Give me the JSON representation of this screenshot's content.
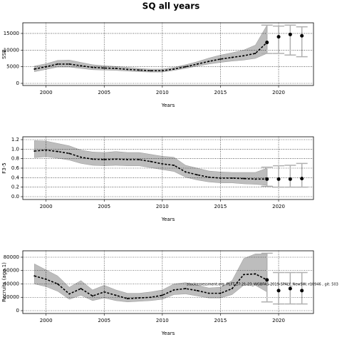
{
  "chart_data": [
    {
      "type": "line",
      "title": "SQ all years",
      "xlabel": "Years",
      "ylabel": "SSB",
      "x": [
        1999,
        2000,
        2001,
        2002,
        2003,
        2004,
        2005,
        2006,
        2007,
        2008,
        2009,
        2010,
        2011,
        2012,
        2013,
        2014,
        2015,
        2016,
        2017,
        2018,
        2019
      ],
      "values": [
        4300,
        5000,
        5800,
        5800,
        5300,
        4800,
        4600,
        4500,
        4200,
        4000,
        3800,
        3800,
        4300,
        5000,
        5800,
        6600,
        7300,
        7800,
        8300,
        9000,
        12300
      ],
      "lower": [
        3500,
        4200,
        4900,
        4900,
        4500,
        4100,
        4000,
        3900,
        3700,
        3500,
        3400,
        3400,
        3900,
        4500,
        5200,
        5800,
        6300,
        6700,
        7000,
        7500,
        9000
      ],
      "upper": [
        5200,
        5900,
        6900,
        7000,
        6300,
        5600,
        5300,
        5100,
        4800,
        4500,
        4300,
        4300,
        4800,
        5600,
        6500,
        7600,
        8500,
        9200,
        10000,
        11500,
        17500
      ],
      "proj_x": [
        2019,
        2020,
        2021,
        2022
      ],
      "proj_values": [
        12300,
        14000,
        14700,
        14300
      ],
      "proj_lower": [
        9000,
        9000,
        8500,
        8000
      ],
      "proj_upper": [
        17500,
        17200,
        17500,
        17000
      ],
      "color": "#000000",
      "band_color": "#bdbdbd",
      "bar_color": "#b0b0b0",
      "xlim": [
        1998,
        2023
      ],
      "ylim": [
        -640,
        18200
      ],
      "xticks": [
        2000,
        2005,
        2010,
        2015,
        2020
      ],
      "yticks": [
        0,
        5000,
        10000,
        15000
      ],
      "grid": true
    },
    {
      "type": "line",
      "xlabel": "Years",
      "ylabel": "F3-5",
      "x": [
        1999,
        2000,
        2001,
        2002,
        2003,
        2004,
        2005,
        2006,
        2007,
        2008,
        2009,
        2010,
        2011,
        2012,
        2013,
        2014,
        2015,
        2016,
        2017,
        2018,
        2019
      ],
      "values": [
        0.96,
        0.98,
        0.95,
        0.91,
        0.83,
        0.79,
        0.78,
        0.79,
        0.78,
        0.78,
        0.74,
        0.69,
        0.66,
        0.52,
        0.46,
        0.41,
        0.39,
        0.39,
        0.38,
        0.37,
        0.37
      ],
      "lower": [
        0.82,
        0.84,
        0.81,
        0.77,
        0.7,
        0.66,
        0.65,
        0.66,
        0.65,
        0.65,
        0.61,
        0.57,
        0.53,
        0.41,
        0.35,
        0.31,
        0.29,
        0.29,
        0.27,
        0.26,
        0.24
      ],
      "upper": [
        1.18,
        1.17,
        1.12,
        1.07,
        0.98,
        0.94,
        0.93,
        0.95,
        0.93,
        0.93,
        0.89,
        0.85,
        0.83,
        0.66,
        0.6,
        0.54,
        0.52,
        0.51,
        0.51,
        0.51,
        0.6
      ],
      "proj_x": [
        2019,
        2020,
        2021,
        2022
      ],
      "proj_values": [
        0.37,
        0.37,
        0.37,
        0.38
      ],
      "proj_lower": [
        0.22,
        0.2,
        0.2,
        0.2
      ],
      "proj_upper": [
        0.62,
        0.65,
        0.66,
        0.7
      ],
      "color": "#000000",
      "band_color": "#bdbdbd",
      "bar_color": "#b0b0b0",
      "xlim": [
        1998,
        2023
      ],
      "ylim": [
        -0.06,
        1.26
      ],
      "xticks": [
        2000,
        2005,
        2010,
        2015,
        2020
      ],
      "yticks": [
        {
          "value": 0,
          "label": "0.0"
        },
        0.2,
        0.4,
        0.6,
        0.8,
        {
          "value": 1,
          "label": "1.0"
        },
        1.2
      ],
      "grid": true
    },
    {
      "type": "line",
      "xlabel": "Years",
      "ylabel": "Recruits (age 1)",
      "annotation": "stockassessment.org, PLFT 27.21-23_WGBFAS-2019-SPALY_NewSW, r10946 , git: 503",
      "x": [
        1999,
        2000,
        2001,
        2002,
        2003,
        2004,
        2005,
        2006,
        2007,
        2008,
        2009,
        2010,
        2011,
        2012,
        2013,
        2014,
        2015,
        2016,
        2017,
        2018,
        2019
      ],
      "values": [
        52000,
        47000,
        40000,
        25000,
        33000,
        22000,
        28000,
        23000,
        18000,
        19000,
        20000,
        23000,
        31000,
        33000,
        30000,
        26000,
        26000,
        33000,
        54000,
        55000,
        46000
      ],
      "lower": [
        40000,
        36000,
        29000,
        17000,
        23000,
        15000,
        19000,
        15000,
        13000,
        14000,
        15000,
        17000,
        24000,
        25000,
        22000,
        19000,
        19000,
        24000,
        38000,
        38000,
        28000
      ],
      "upper": [
        70000,
        61000,
        52000,
        35000,
        45000,
        31000,
        38000,
        31000,
        26000,
        26000,
        28000,
        31000,
        40000,
        42000,
        38000,
        34000,
        35000,
        45000,
        78000,
        85000,
        85000
      ],
      "proj_x": [
        2019,
        2020,
        2021,
        2022
      ],
      "proj_values": [
        46000,
        30000,
        33000,
        30000
      ],
      "proj_lower": [
        13000,
        10000,
        10000,
        10000
      ],
      "proj_upper": [
        86000,
        57000,
        57000,
        57000
      ],
      "color": "#000000",
      "band_color": "#bdbdbd",
      "bar_color": "#b0b0b0",
      "xlim": [
        1998,
        2023
      ],
      "ylim": [
        -4270,
        89600
      ],
      "xticks": [
        2000,
        2005,
        2010,
        2015,
        2020
      ],
      "yticks": [
        0,
        20000,
        40000,
        60000,
        80000
      ],
      "grid": true
    }
  ]
}
